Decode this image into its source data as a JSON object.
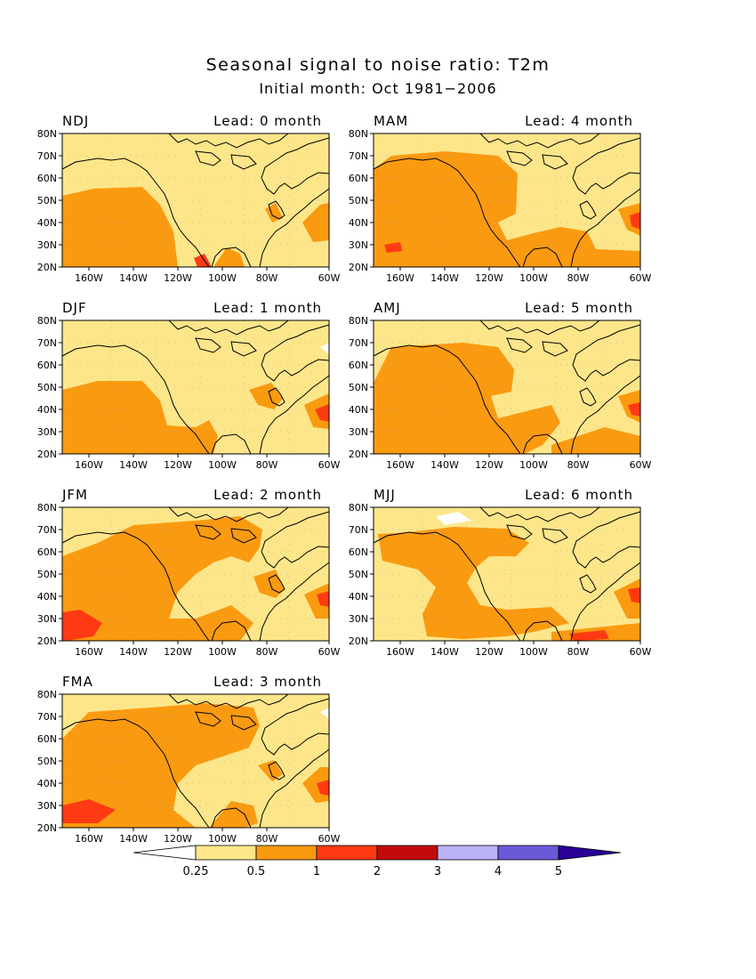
{
  "title": "Seasonal signal to noise ratio: T2m",
  "subtitle": "Initial month: Oct 1981−2006",
  "axes": {
    "lat_ticks": [
      "80N",
      "70N",
      "60N",
      "50N",
      "40N",
      "30N",
      "20N"
    ],
    "lon_ticks": [
      "160W",
      "140W",
      "120W",
      "100W",
      "80W",
      "60W"
    ],
    "lat_range": [
      20,
      80
    ],
    "lon_range": [
      -170,
      -60
    ]
  },
  "colorbar": {
    "labels": [
      "0.25",
      "0.5",
      "1",
      "2",
      "3",
      "4",
      "5"
    ],
    "colors": [
      "#ffffff",
      "#fde68a",
      "#fa9a10",
      "#ff3a12",
      "#c30a0a",
      "#b9b2f5",
      "#6b5ad8",
      "#2a0099"
    ],
    "thresholds": [
      0.25,
      0.5,
      1,
      2,
      3,
      4,
      5
    ]
  },
  "map_colors": {
    "low": "#fde68a",
    "mid": "#fa9a10",
    "high": "#ff3a12",
    "vhigh": "#c30a0a",
    "none": "#ffffff"
  },
  "panels": [
    {
      "season": "NDJ",
      "lead": "Lead: 0 month",
      "col": 0,
      "row": 0
    },
    {
      "season": "MAM",
      "lead": "Lead: 4 month",
      "col": 1,
      "row": 0
    },
    {
      "season": "DJF",
      "lead": "Lead: 1 month",
      "col": 0,
      "row": 1
    },
    {
      "season": "AMJ",
      "lead": "Lead: 5 month",
      "col": 1,
      "row": 1
    },
    {
      "season": "JFM",
      "lead": "Lead: 2 month",
      "col": 0,
      "row": 2
    },
    {
      "season": "MJJ",
      "lead": "Lead: 6 month",
      "col": 1,
      "row": 2
    },
    {
      "season": "FMA",
      "lead": "Lead: 3 month",
      "col": 0,
      "row": 3
    }
  ]
}
